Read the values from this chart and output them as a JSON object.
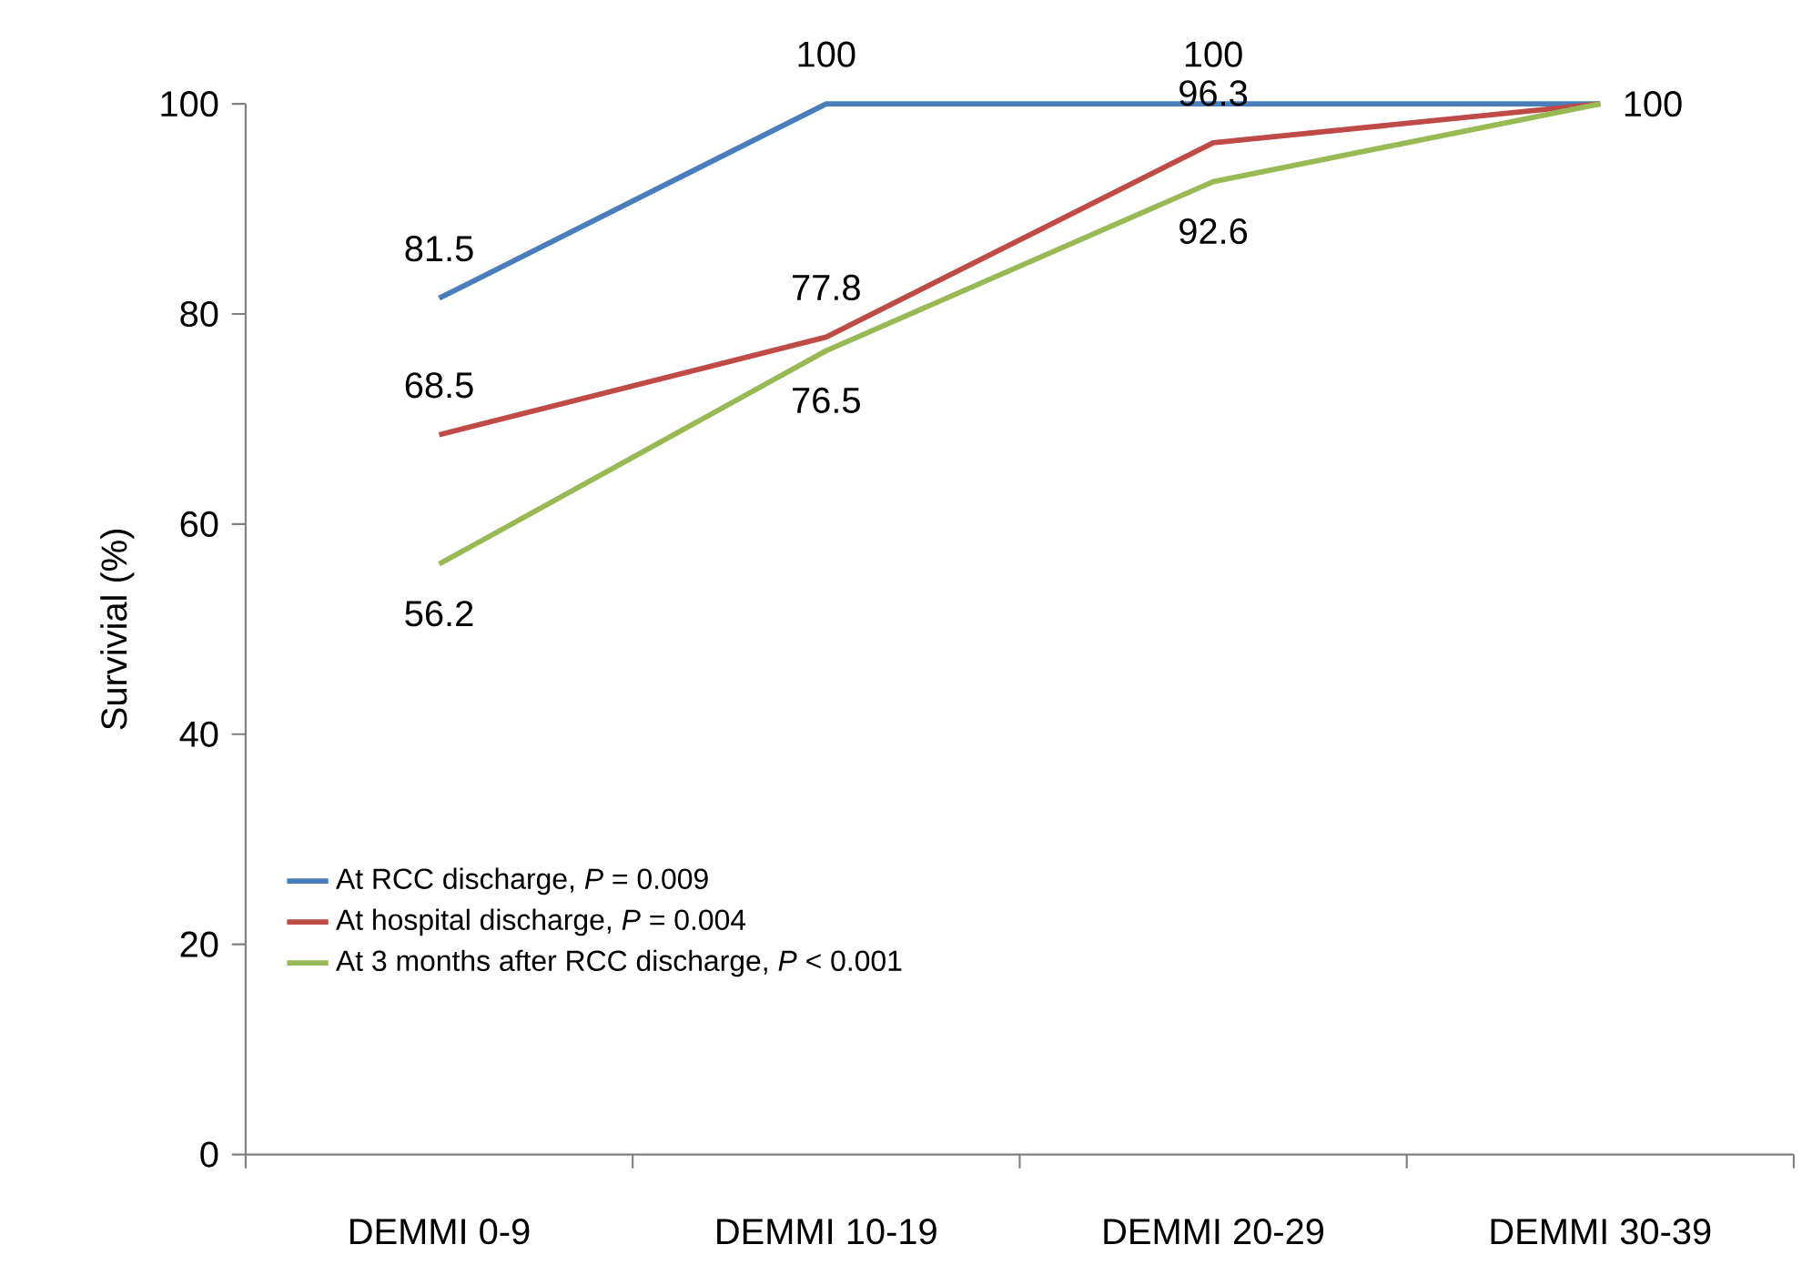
{
  "chart_data": {
    "type": "line",
    "ylabel": "Survivial (%)",
    "categories": [
      "DEMMI 0-9",
      "DEMMI 10-19",
      "DEMMI 20-29",
      "DEMMI 30-39"
    ],
    "ylim": [
      0,
      100
    ],
    "yticks": [
      0,
      20,
      40,
      60,
      80,
      100
    ],
    "legend": "bottom left",
    "series": [
      {
        "name": "At RCC discharge, *P* = 0.009",
        "color": "#4a7ebb",
        "values": [
          81.5,
          100,
          100,
          100
        ],
        "value_labels": [
          "81.5",
          "100",
          "100",
          "100"
        ]
      },
      {
        "name": "At hospital discharge, *P* = 0.004",
        "color": "#be4b48",
        "values": [
          68.5,
          77.8,
          96.3,
          100
        ],
        "value_labels": [
          "68.5",
          "77.8",
          "96.3",
          null
        ]
      },
      {
        "name": "At 3 months after RCC discharge, *P* < 0.001",
        "color": "#98b954",
        "values": [
          56.2,
          76.5,
          92.6,
          100
        ],
        "value_labels": [
          "56.2",
          "76.5",
          "92.6",
          null
        ]
      }
    ]
  }
}
